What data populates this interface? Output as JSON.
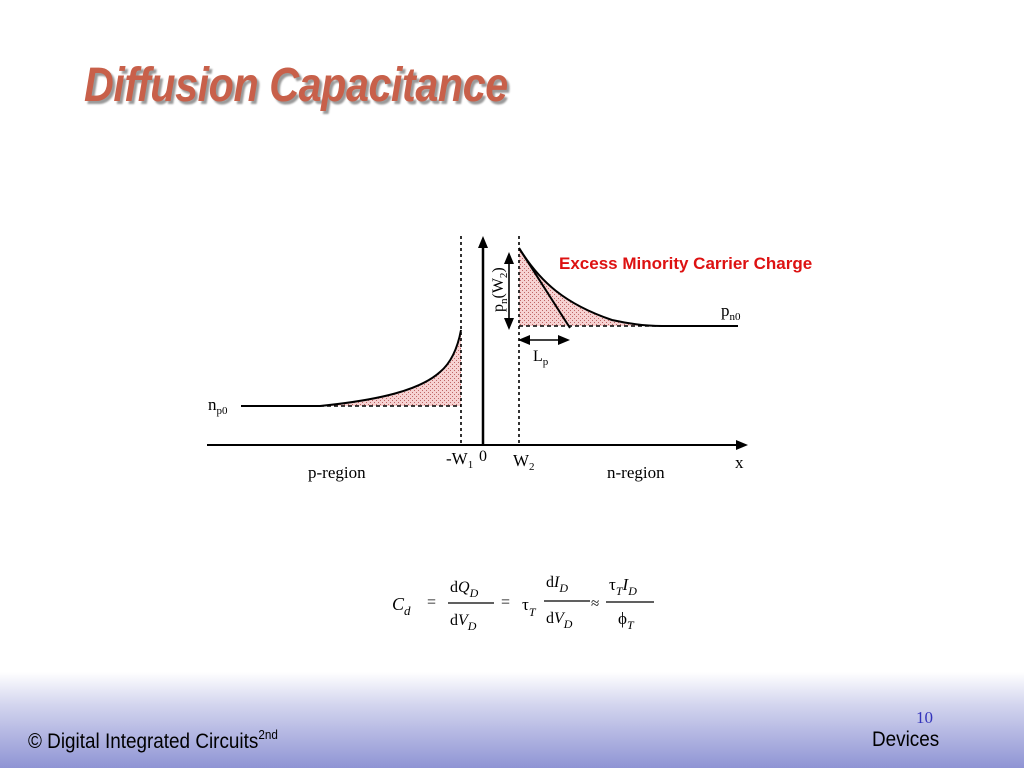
{
  "slide": {
    "title": "Diffusion Capacitance"
  },
  "diagram": {
    "annotation": "Excess Minority Carrier Charge",
    "label_np0_main": "n",
    "label_np0_sub": "p0",
    "label_pn0_main": "p",
    "label_pn0_sub": "n0",
    "label_pnw2_main": "p",
    "label_pnw2_sub": "n",
    "label_pnw2_arg": "(W",
    "label_pnw2_argsub": "2",
    "label_pnw2_close": ")",
    "label_lp_main": "L",
    "label_lp_sub": "p",
    "label_neg_w1_main": "-W",
    "label_neg_w1_sub": "1",
    "label_zero": "0",
    "label_w2_main": "W",
    "label_w2_sub": "2",
    "label_x": "x",
    "label_p_region": "p-region",
    "label_n_region": "n-region",
    "colors": {
      "shade": "#f3c6c6",
      "annotation": "#dd1111",
      "stroke": "#000000"
    }
  },
  "equation": {
    "cd_main": "C",
    "cd_sub": "d",
    "eq1": "=",
    "f1_num_d": "d",
    "f1_num_var": "Q",
    "f1_num_sub": "D",
    "f1_den_d": "d",
    "f1_den_var": "V",
    "f1_den_sub": "D",
    "eq2": "=",
    "tau": "τ",
    "tau_sub": "T",
    "f2_num_d": "d",
    "f2_num_var": "I",
    "f2_num_sub": "D",
    "f2_den_d": "d",
    "f2_den_var": "V",
    "f2_den_sub": "D",
    "approx": "≈",
    "f3_num_tau": "τ",
    "f3_num_tau_sub": "T",
    "f3_num_var": "I",
    "f3_num_sub": "D",
    "f3_den_phi": "ϕ",
    "f3_den_sub": "T"
  },
  "footer": {
    "copyright_main": "© Digital Integrated Circuits",
    "copyright_sup": "2nd",
    "page_number": "10",
    "section": "Devices"
  }
}
